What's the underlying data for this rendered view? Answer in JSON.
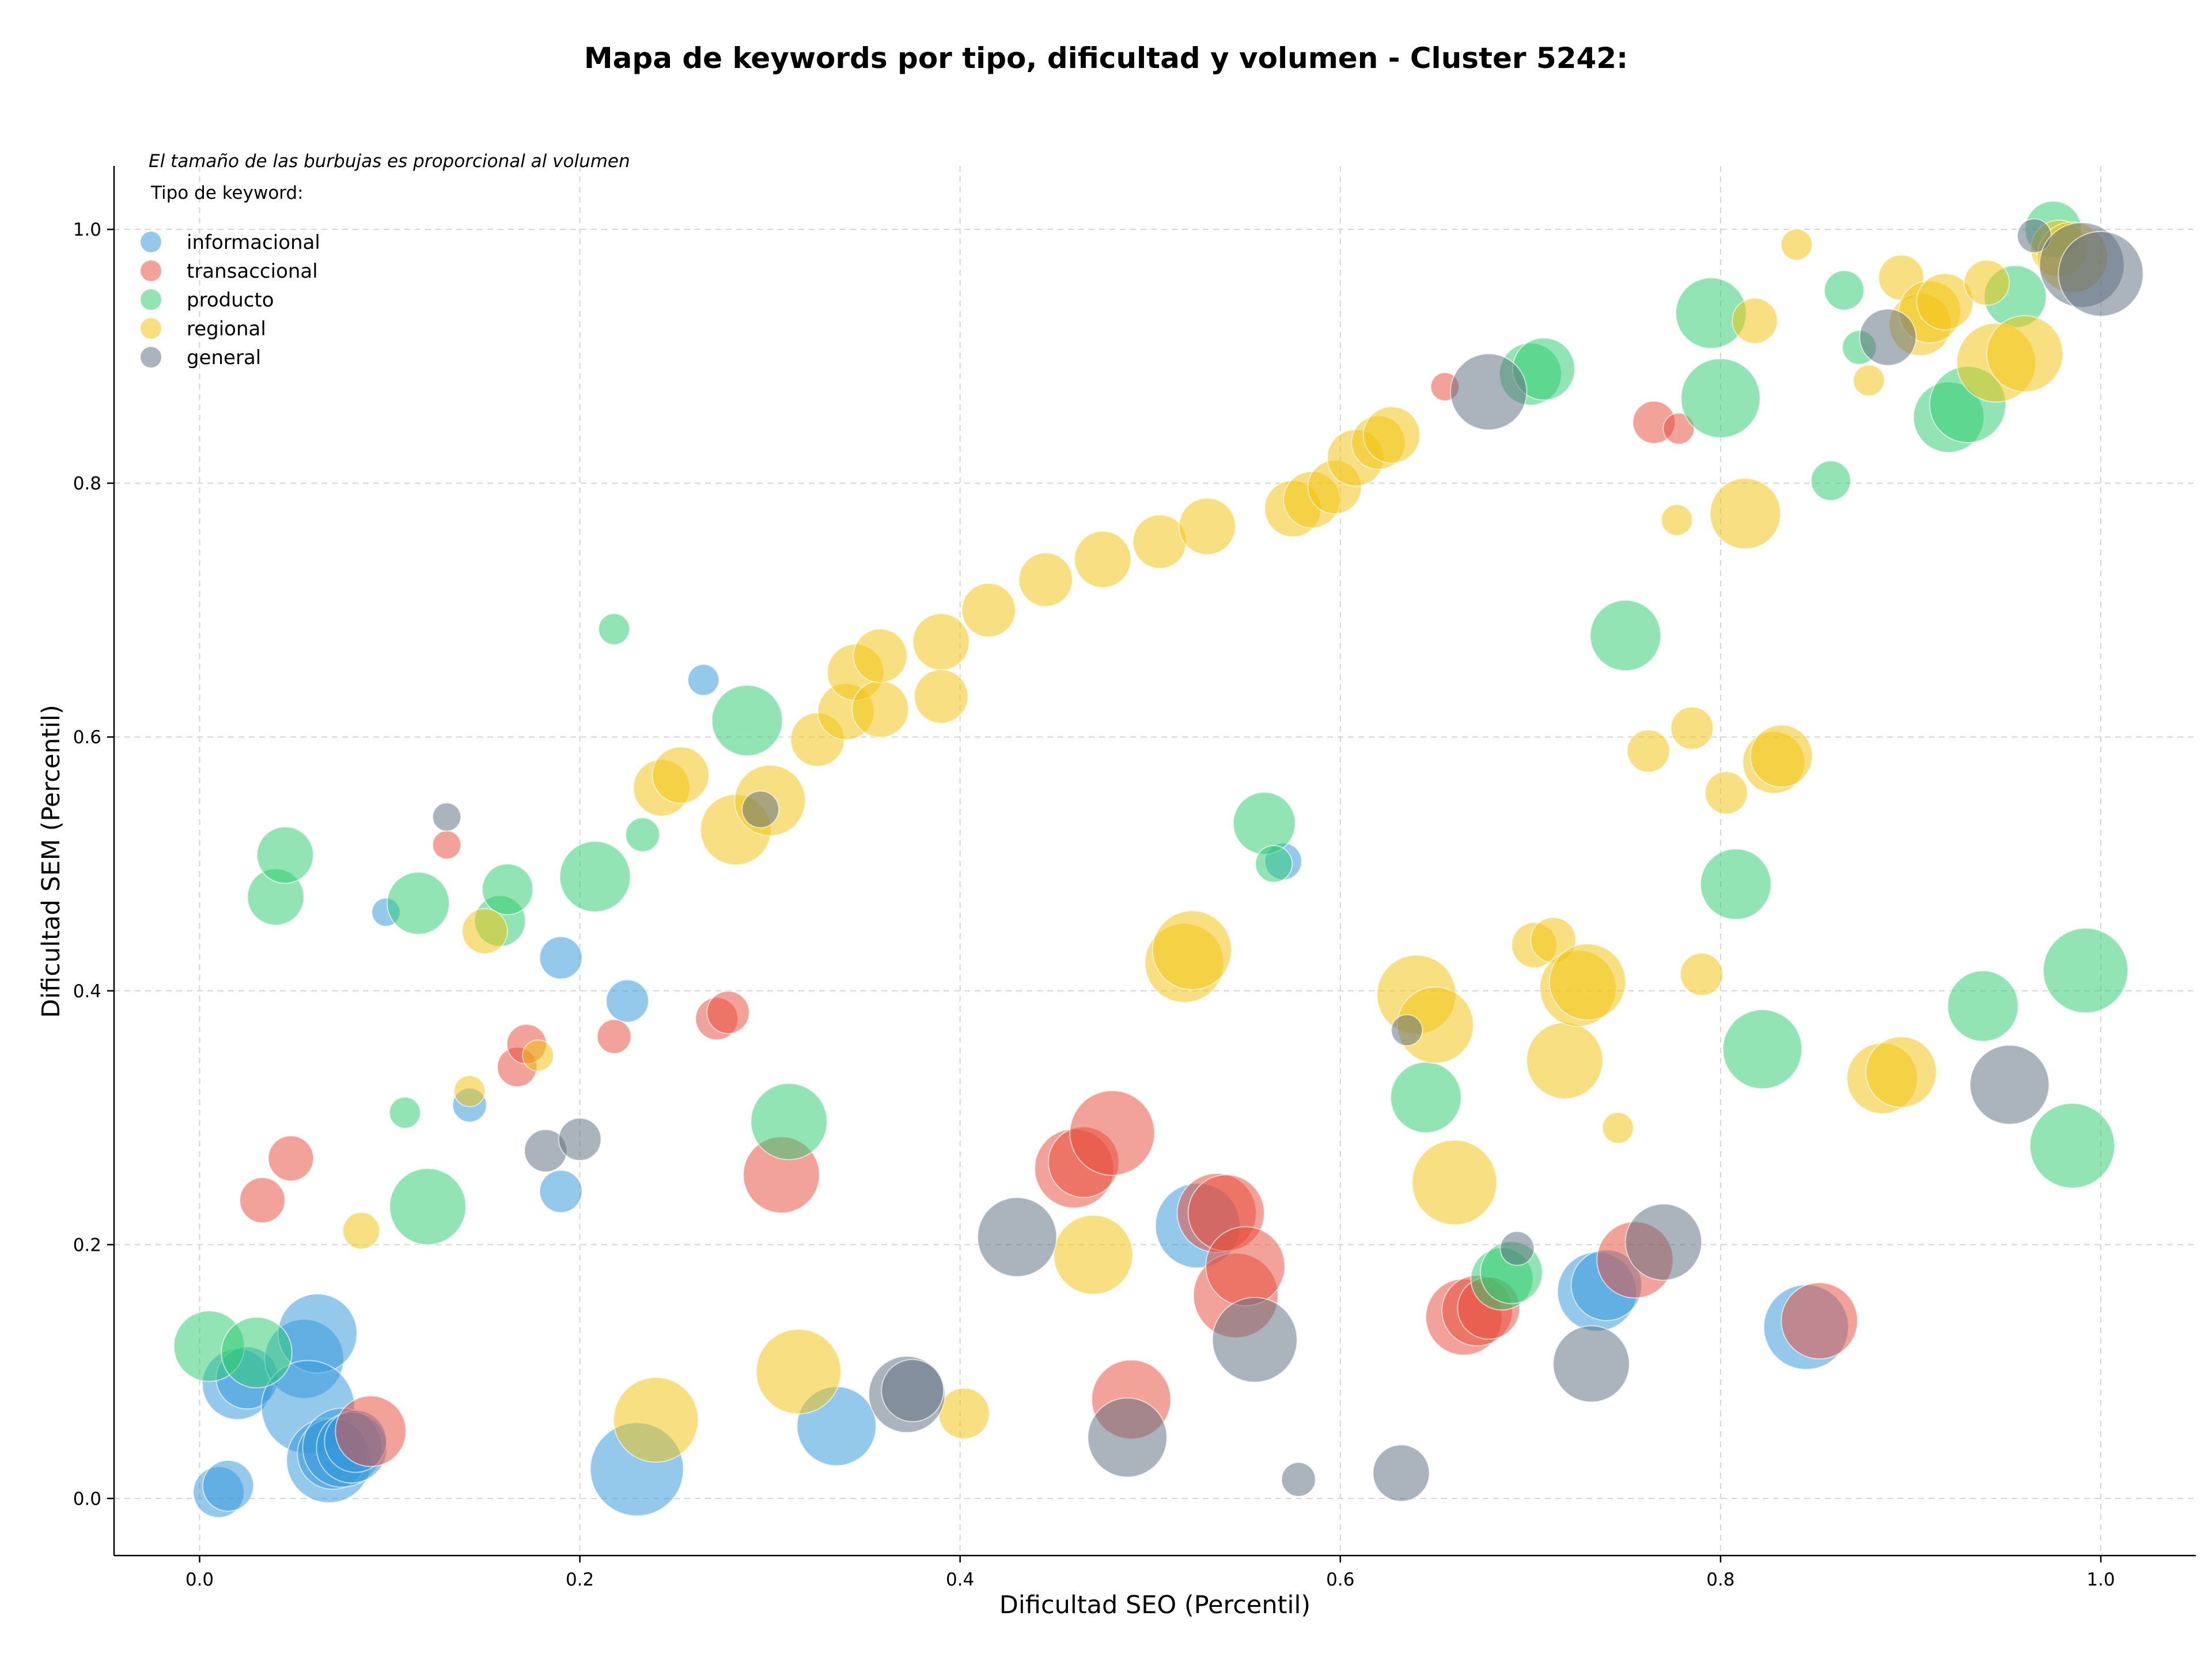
{
  "chart_data": {
    "type": "scatter",
    "title": "Mapa de keywords por tipo, dificultad y volumen - Cluster 5242:",
    "xlabel": "Dificultad SEO (Percentil)",
    "ylabel": "Dificultad SEM (Percentil)",
    "xlim": [
      -0.045,
      1.05
    ],
    "ylim": [
      -0.045,
      1.05
    ],
    "xticks": [
      "0.0",
      "0.2",
      "0.4",
      "0.6",
      "0.8",
      "1.0"
    ],
    "yticks": [
      "0.0",
      "0.2",
      "0.4",
      "0.6",
      "0.8",
      "1.0"
    ],
    "grid": true,
    "legend": {
      "placement": "top-left",
      "note": "El tamaño de las burbujas es proporcional al volumen",
      "title": "Tipo de keyword:"
    },
    "series": [
      {
        "name": "informacional",
        "color": "#3498db",
        "points": [
          [
            0.01,
            0.005,
            18
          ],
          [
            0.015,
            0.01,
            18
          ],
          [
            0.02,
            0.09,
            25
          ],
          [
            0.025,
            0.095,
            22
          ],
          [
            0.055,
            0.11,
            28
          ],
          [
            0.062,
            0.13,
            28
          ],
          [
            0.057,
            0.072,
            33
          ],
          [
            0.068,
            0.03,
            30
          ],
          [
            0.07,
            0.035,
            25
          ],
          [
            0.075,
            0.04,
            28
          ],
          [
            0.08,
            0.04,
            25
          ],
          [
            0.082,
            0.045,
            22
          ],
          [
            0.098,
            0.462,
            10
          ],
          [
            0.142,
            0.31,
            12
          ],
          [
            0.19,
            0.426,
            15
          ],
          [
            0.19,
            0.242,
            15
          ],
          [
            0.225,
            0.392,
            15
          ],
          [
            0.23,
            0.023,
            33
          ],
          [
            0.265,
            0.645,
            11
          ],
          [
            0.335,
            0.057,
            28
          ],
          [
            0.525,
            0.215,
            30
          ],
          [
            0.57,
            0.502,
            13
          ],
          [
            0.735,
            0.163,
            28
          ],
          [
            0.74,
            0.168,
            25
          ],
          [
            0.845,
            0.135,
            30
          ]
        ]
      },
      {
        "name": "transaccional",
        "color": "#e74c3c",
        "points": [
          [
            0.033,
            0.235,
            16
          ],
          [
            0.048,
            0.268,
            16
          ],
          [
            0.09,
            0.053,
            25
          ],
          [
            0.13,
            0.515,
            10
          ],
          [
            0.167,
            0.34,
            14
          ],
          [
            0.172,
            0.358,
            14
          ],
          [
            0.218,
            0.364,
            12
          ],
          [
            0.272,
            0.378,
            15
          ],
          [
            0.278,
            0.383,
            15
          ],
          [
            0.306,
            0.255,
            27
          ],
          [
            0.46,
            0.26,
            28
          ],
          [
            0.465,
            0.265,
            25
          ],
          [
            0.48,
            0.288,
            30
          ],
          [
            0.49,
            0.078,
            28
          ],
          [
            0.535,
            0.225,
            28
          ],
          [
            0.54,
            0.225,
            27
          ],
          [
            0.545,
            0.16,
            30
          ],
          [
            0.55,
            0.183,
            28
          ],
          [
            0.665,
            0.143,
            27
          ],
          [
            0.672,
            0.148,
            25
          ],
          [
            0.678,
            0.15,
            22
          ],
          [
            0.655,
            0.876,
            10
          ],
          [
            0.755,
            0.188,
            27
          ],
          [
            0.765,
            0.848,
            15
          ],
          [
            0.778,
            0.843,
            11
          ],
          [
            0.852,
            0.14,
            27
          ]
        ]
      },
      {
        "name": "producto",
        "color": "#2ecc71",
        "points": [
          [
            0.005,
            0.12,
            25
          ],
          [
            0.03,
            0.115,
            25
          ],
          [
            0.04,
            0.474,
            20
          ],
          [
            0.045,
            0.507,
            20
          ],
          [
            0.108,
            0.304,
            11
          ],
          [
            0.12,
            0.23,
            27
          ],
          [
            0.115,
            0.469,
            22
          ],
          [
            0.158,
            0.455,
            18
          ],
          [
            0.162,
            0.48,
            18
          ],
          [
            0.208,
            0.49,
            25
          ],
          [
            0.218,
            0.685,
            11
          ],
          [
            0.233,
            0.523,
            12
          ],
          [
            0.288,
            0.613,
            25
          ],
          [
            0.31,
            0.297,
            27
          ],
          [
            0.56,
            0.532,
            22
          ],
          [
            0.565,
            0.5,
            13
          ],
          [
            0.645,
            0.316,
            25
          ],
          [
            0.685,
            0.173,
            22
          ],
          [
            0.69,
            0.178,
            22
          ],
          [
            0.7,
            0.886,
            22
          ],
          [
            0.707,
            0.89,
            22
          ],
          [
            0.75,
            0.68,
            25
          ],
          [
            0.795,
            0.934,
            25
          ],
          [
            0.8,
            0.867,
            28
          ],
          [
            0.808,
            0.484,
            25
          ],
          [
            0.822,
            0.354,
            28
          ],
          [
            0.858,
            0.802,
            14
          ],
          [
            0.865,
            0.952,
            14
          ],
          [
            0.873,
            0.907,
            12
          ],
          [
            0.92,
            0.852,
            25
          ],
          [
            0.93,
            0.862,
            27
          ],
          [
            0.955,
            0.947,
            22
          ],
          [
            0.975,
            1.0,
            20
          ],
          [
            0.938,
            0.388,
            25
          ],
          [
            0.985,
            0.278,
            30
          ],
          [
            0.992,
            0.416,
            30
          ]
        ]
      },
      {
        "name": "regional",
        "color": "#f1c40f",
        "points": [
          [
            0.085,
            0.211,
            13
          ],
          [
            0.142,
            0.321,
            11
          ],
          [
            0.15,
            0.447,
            16
          ],
          [
            0.178,
            0.349,
            11
          ],
          [
            0.24,
            0.062,
            30
          ],
          [
            0.243,
            0.56,
            20
          ],
          [
            0.253,
            0.57,
            20
          ],
          [
            0.282,
            0.527,
            25
          ],
          [
            0.3,
            0.55,
            25
          ],
          [
            0.315,
            0.1,
            30
          ],
          [
            0.325,
            0.598,
            19
          ],
          [
            0.34,
            0.62,
            20
          ],
          [
            0.345,
            0.651,
            20
          ],
          [
            0.358,
            0.622,
            20
          ],
          [
            0.358,
            0.664,
            19
          ],
          [
            0.39,
            0.675,
            20
          ],
          [
            0.39,
            0.632,
            19
          ],
          [
            0.402,
            0.067,
            18
          ],
          [
            0.415,
            0.7,
            19
          ],
          [
            0.445,
            0.724,
            19
          ],
          [
            0.47,
            0.192,
            28
          ],
          [
            0.475,
            0.74,
            20
          ],
          [
            0.505,
            0.754,
            19
          ],
          [
            0.53,
            0.766,
            20
          ],
          [
            0.518,
            0.422,
            28
          ],
          [
            0.522,
            0.432,
            28
          ],
          [
            0.575,
            0.78,
            20
          ],
          [
            0.585,
            0.787,
            20
          ],
          [
            0.597,
            0.797,
            19
          ],
          [
            0.608,
            0.82,
            20
          ],
          [
            0.62,
            0.832,
            19
          ],
          [
            0.627,
            0.838,
            20
          ],
          [
            0.64,
            0.397,
            28
          ],
          [
            0.65,
            0.373,
            27
          ],
          [
            0.66,
            0.249,
            30
          ],
          [
            0.702,
            0.436,
            16
          ],
          [
            0.712,
            0.44,
            16
          ],
          [
            0.718,
            0.345,
            27
          ],
          [
            0.725,
            0.402,
            27
          ],
          [
            0.73,
            0.407,
            27
          ],
          [
            0.746,
            0.292,
            11
          ],
          [
            0.762,
            0.589,
            15
          ],
          [
            0.777,
            0.771,
            11
          ],
          [
            0.785,
            0.607,
            15
          ],
          [
            0.79,
            0.413,
            15
          ],
          [
            0.803,
            0.556,
            15
          ],
          [
            0.813,
            0.776,
            25
          ],
          [
            0.818,
            0.928,
            16
          ],
          [
            0.828,
            0.58,
            22
          ],
          [
            0.832,
            0.585,
            22
          ],
          [
            0.84,
            0.988,
            11
          ],
          [
            0.878,
            0.881,
            11
          ],
          [
            0.885,
            0.331,
            25
          ],
          [
            0.895,
            0.336,
            25
          ],
          [
            0.895,
            0.962,
            16
          ],
          [
            0.905,
            0.925,
            22
          ],
          [
            0.91,
            0.935,
            22
          ],
          [
            0.918,
            0.943,
            20
          ],
          [
            0.94,
            0.958,
            16
          ],
          [
            0.945,
            0.895,
            28
          ],
          [
            0.96,
            0.902,
            27
          ],
          [
            0.978,
            0.985,
            20
          ],
          [
            0.985,
            0.978,
            25
          ]
        ]
      },
      {
        "name": "general",
        "color": "#5d6d7e",
        "points": [
          [
            0.13,
            0.537,
            10
          ],
          [
            0.182,
            0.274,
            15
          ],
          [
            0.2,
            0.283,
            15
          ],
          [
            0.295,
            0.543,
            13
          ],
          [
            0.372,
            0.082,
            27
          ],
          [
            0.375,
            0.085,
            22
          ],
          [
            0.43,
            0.206,
            28
          ],
          [
            0.488,
            0.048,
            28
          ],
          [
            0.555,
            0.125,
            30
          ],
          [
            0.578,
            0.015,
            12
          ],
          [
            0.632,
            0.02,
            20
          ],
          [
            0.635,
            0.369,
            11
          ],
          [
            0.678,
            0.872,
            27
          ],
          [
            0.693,
            0.197,
            12
          ],
          [
            0.732,
            0.106,
            27
          ],
          [
            0.77,
            0.202,
            27
          ],
          [
            0.888,
            0.915,
            20
          ],
          [
            0.952,
            0.326,
            28
          ],
          [
            0.965,
            0.995,
            12
          ],
          [
            0.99,
            0.972,
            30
          ],
          [
            1.0,
            0.965,
            30
          ]
        ]
      }
    ]
  }
}
